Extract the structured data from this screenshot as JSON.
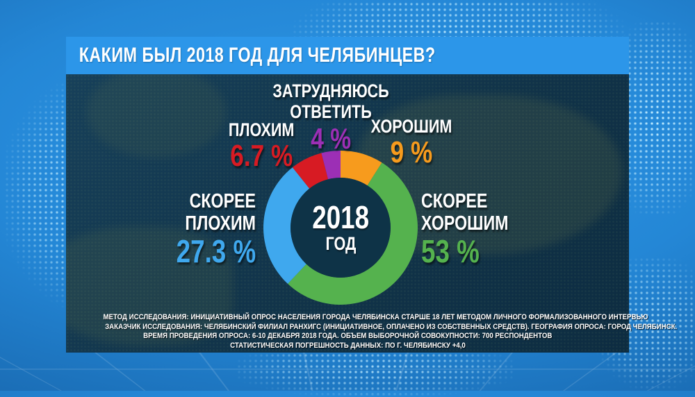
{
  "title": "КАКИМ БЫЛ 2018 ГОД ДЛЯ ЧЕЛЯБИНЦЕВ?",
  "chart_data": {
    "type": "pie",
    "variant": "donut",
    "title": "КАКИМ БЫЛ 2018 ГОД ДЛЯ ЧЕЛЯБИНЦЕВ?",
    "units": "%",
    "start_angle_deg": 0,
    "direction": "clockwise",
    "center_label": {
      "line1": "2018",
      "line2": "ГОД"
    },
    "inner_color": "#0E3347",
    "segments": [
      {
        "label": "ХОРОШИМ",
        "value": 9,
        "value_label": "9 %",
        "color": "#F79B1D"
      },
      {
        "label": "СКОРЕЕ ХОРОШИМ",
        "value": 53,
        "value_label": "53 %",
        "color": "#55B24E"
      },
      {
        "label": "СКОРЕЕ ПЛОХИМ",
        "value": 27.3,
        "value_label": "27.3 %",
        "color": "#3FA8EE"
      },
      {
        "label": "ПЛОХИМ",
        "value": 6.7,
        "value_label": "6.7 %",
        "color": "#D71B23"
      },
      {
        "label": "ЗАТРУДНЯЮСЬ ОТВЕТИТЬ",
        "value": 4,
        "value_label": "4 %",
        "color": "#9C2FB5"
      }
    ]
  },
  "footer": {
    "lines": [
      "МЕТОД ИССЛЕДОВАНИЯ: ИНИЦИАТИВНЫЙ ОПРОС НАСЕЛЕНИЯ ГОРОДА ЧЕЛЯБИНСКА СТАРШЕ 18 ЛЕТ МЕТОДОМ ЛИЧНОГО ФОРМАЛИЗОВАННОГО ИНТЕРВЬЮ",
      "ЗАКАЗЧИК ИССЛЕДОВАНИЯ: ЧЕЛЯБИНСКИЙ ФИЛИАЛ РАНХИГС (ИНИЦИАТИВНОЕ, ОПЛАЧЕНО ИЗ СОБСТВЕННЫХ СРЕДСТВ). ГЕОГРАФИЯ ОПРОСА: ГОРОД ЧЕЛЯБИНСК.",
      "ВРЕМЯ ПРОВЕДЕНИЯ ОПРОСА: 6-10 ДЕКАБРЯ 2018 ГОДА. ОБЪЕМ ВЫБОРОЧНОЙ СОВОКУПНОСТИ: 700 РЕСПОНДЕНТОВ",
      "СТАТИСТИЧЕСКАЯ ПОГРЕШНОСТЬ ДАННЫХ: ПО Г. ЧЕЛЯБИНСКУ +4,0"
    ]
  },
  "colors": {
    "title_bar": "#2C96E9",
    "panel_bg": "#113349",
    "outer_bg": "#2487D6",
    "text": "#FFFFFF"
  }
}
